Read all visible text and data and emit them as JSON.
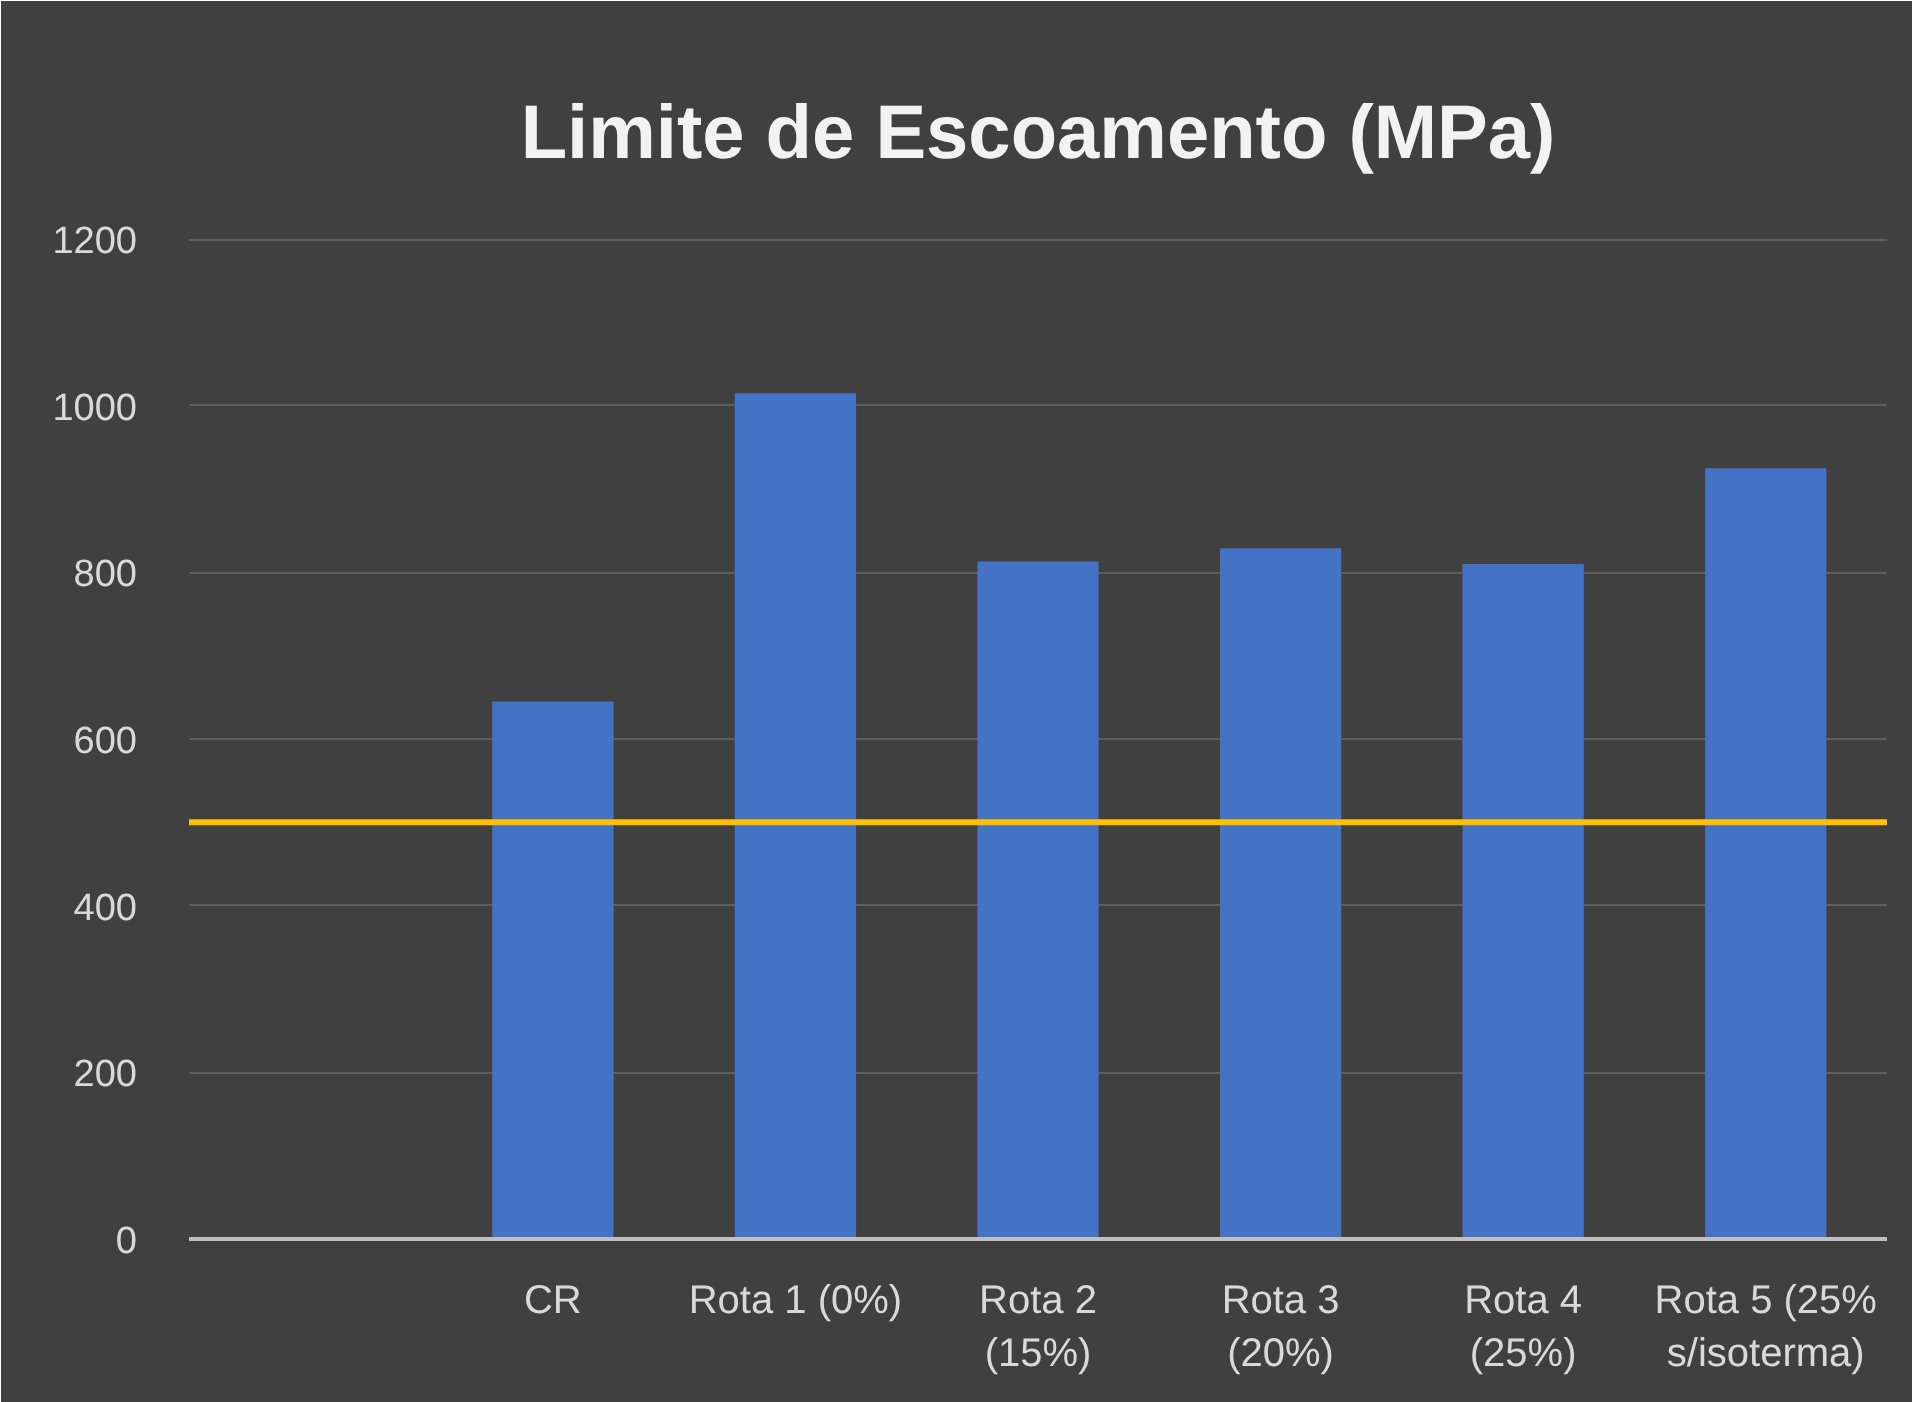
{
  "chart_data": {
    "type": "bar",
    "title": "Limite de Escoamento (MPa)",
    "categories": [
      null,
      "CR",
      "Rota 1 (0%)",
      "Rota 2 (15%)",
      "Rota 3 (20%)",
      "Rota 4 (25%)",
      "Rota 5 (25% s/isoterma)"
    ],
    "values": [
      null,
      645,
      1015,
      813,
      829,
      810,
      925
    ],
    "color": "#4472c4",
    "ylim": [
      0,
      1200
    ],
    "yticks": [
      0,
      200,
      400,
      600,
      800,
      1000,
      1200
    ],
    "grid": "y",
    "ref_lines": [
      {
        "axis": "y",
        "value": 500,
        "color": "#ffc000"
      }
    ]
  }
}
